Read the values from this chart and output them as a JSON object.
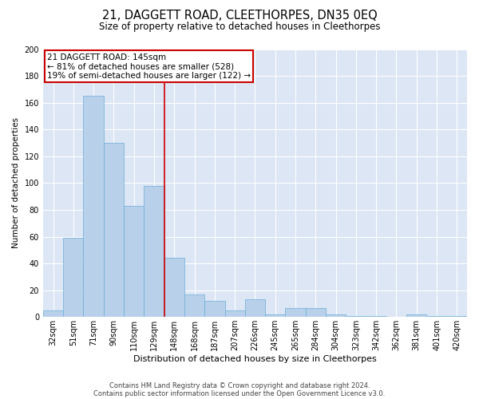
{
  "title": "21, DAGGETT ROAD, CLEETHORPES, DN35 0EQ",
  "subtitle": "Size of property relative to detached houses in Cleethorpes",
  "xlabel": "Distribution of detached houses by size in Cleethorpes",
  "ylabel": "Number of detached properties",
  "footnote1": "Contains HM Land Registry data © Crown copyright and database right 2024.",
  "footnote2": "Contains public sector information licensed under the Open Government Licence v3.0.",
  "annotation_line1": "21 DAGGETT ROAD: 145sqm",
  "annotation_line2": "← 81% of detached houses are smaller (528)",
  "annotation_line3": "19% of semi-detached houses are larger (122) →",
  "bar_color": "#b8d0ea",
  "bar_edge_color": "#6baed6",
  "background_color": "#dce6f5",
  "marker_line_color": "#cc0000",
  "annotation_box_color": "#cc0000",
  "categories": [
    "32sqm",
    "51sqm",
    "71sqm",
    "90sqm",
    "110sqm",
    "129sqm",
    "148sqm",
    "168sqm",
    "187sqm",
    "207sqm",
    "226sqm",
    "245sqm",
    "265sqm",
    "284sqm",
    "304sqm",
    "323sqm",
    "342sqm",
    "362sqm",
    "381sqm",
    "401sqm",
    "420sqm"
  ],
  "values": [
    5,
    59,
    165,
    130,
    83,
    98,
    44,
    17,
    12,
    5,
    13,
    2,
    7,
    7,
    2,
    1,
    1,
    0,
    2,
    1,
    1
  ],
  "marker_index": 6,
  "ylim": [
    0,
    200
  ],
  "yticks": [
    0,
    20,
    40,
    60,
    80,
    100,
    120,
    140,
    160,
    180,
    200
  ],
  "title_fontsize": 10.5,
  "subtitle_fontsize": 8.5,
  "ylabel_fontsize": 7.5,
  "xlabel_fontsize": 8,
  "tick_fontsize": 7,
  "footnote_fontsize": 6,
  "annotation_fontsize": 7.5
}
